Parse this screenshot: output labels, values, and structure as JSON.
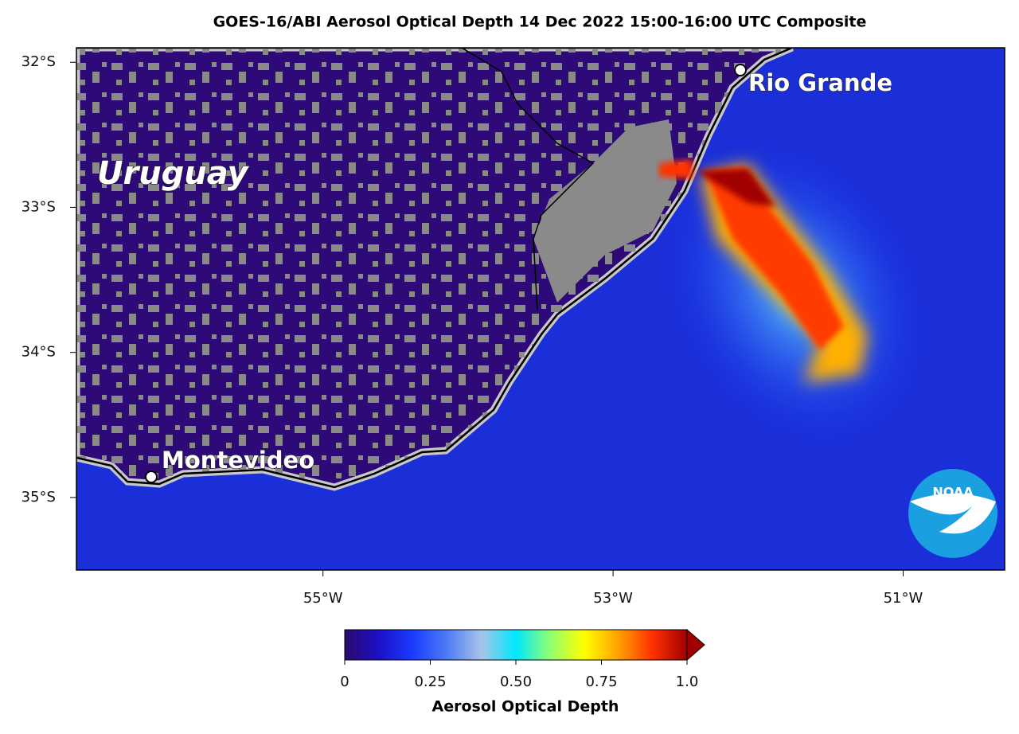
{
  "map": {
    "title": "GOES-16/ABI Aerosol Optical Depth  14 Dec 2022 15:00-16:00 UTC Composite",
    "xlim": [
      -56.7,
      -50.3
    ],
    "ylim": [
      -35.5,
      -31.9
    ],
    "xticks": [
      {
        "value": -55,
        "label": "55°W"
      },
      {
        "value": -53,
        "label": "53°W"
      },
      {
        "value": -51,
        "label": "51°W"
      }
    ],
    "yticks": [
      {
        "value": -32,
        "label": "32°S"
      },
      {
        "value": -33,
        "label": "33°S"
      },
      {
        "value": -34,
        "label": "34°S"
      },
      {
        "value": -35,
        "label": "35°S"
      }
    ],
    "places": [
      "Uruguay",
      "Rio Grande",
      "Montevideo"
    ],
    "logo": "NOAA",
    "colorbar": {
      "label": "Aerosol Optical Depth",
      "lim": [
        0,
        1
      ],
      "ticks": [
        0,
        0.25,
        {
          "value": 0.5,
          "label": "0.50"
        },
        0.75,
        {
          "value": 1,
          "label": "1.0"
        }
      ],
      "colormap": [
        "#2a0a6b",
        "#1c10c8",
        "#1a3cff",
        "#4f7cf5",
        "#a8c4e8",
        "#00e8ff",
        "#90ff70",
        "#ffff00",
        "#ffa000",
        "#ff3000",
        "#a00000"
      ]
    }
  }
}
